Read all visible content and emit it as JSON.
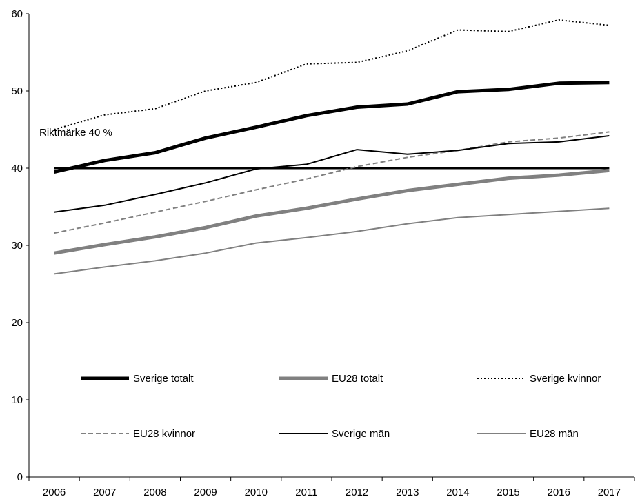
{
  "chart_data": {
    "type": "line",
    "title": "",
    "xlabel": "",
    "ylabel": "",
    "x": [
      2006,
      2007,
      2008,
      2009,
      2010,
      2011,
      2012,
      2013,
      2014,
      2015,
      2016,
      2017
    ],
    "ylim": [
      0,
      60
    ],
    "yticks": [
      0,
      10,
      20,
      30,
      40,
      50,
      60
    ],
    "grid": false,
    "series": [
      {
        "name": "Sverige totalt",
        "color": "#000000",
        "style": "solid",
        "weight": "thick",
        "values": [
          39.5,
          41.0,
          42.0,
          43.9,
          45.3,
          46.8,
          47.9,
          48.3,
          49.9,
          50.2,
          51.0,
          51.1
        ]
      },
      {
        "name": "EU28 totalt",
        "color": "#808080",
        "style": "solid",
        "weight": "thick",
        "values": [
          29.0,
          30.1,
          31.1,
          32.3,
          33.8,
          34.8,
          36.0,
          37.1,
          37.9,
          38.7,
          39.1,
          39.7
        ]
      },
      {
        "name": "Sverige kvinnor",
        "color": "#000000",
        "style": "dotted",
        "weight": "thin",
        "values": [
          45.0,
          46.9,
          47.7,
          50.0,
          51.1,
          53.5,
          53.7,
          55.2,
          57.9,
          57.7,
          59.2,
          58.5
        ]
      },
      {
        "name": "EU28 kvinnor",
        "color": "#808080",
        "style": "dashed",
        "weight": "thin",
        "values": [
          31.6,
          32.9,
          34.3,
          35.7,
          37.2,
          38.6,
          40.2,
          41.4,
          42.3,
          43.4,
          43.9,
          44.7
        ]
      },
      {
        "name": "Sverige män",
        "color": "#000000",
        "style": "solid",
        "weight": "thin",
        "values": [
          34.3,
          35.2,
          36.6,
          38.1,
          39.9,
          40.5,
          42.4,
          41.8,
          42.3,
          43.2,
          43.4,
          44.2
        ]
      },
      {
        "name": "EU28 män",
        "color": "#808080",
        "style": "solid",
        "weight": "thin",
        "values": [
          26.3,
          27.2,
          28.0,
          29.0,
          30.3,
          31.0,
          31.8,
          32.8,
          33.6,
          34.0,
          34.4,
          34.8
        ]
      }
    ],
    "reference_line": {
      "label": "Riktmärke 40 %",
      "value": 40,
      "color": "#000000"
    },
    "legend_placement": "bottom-inside, two rows of three"
  }
}
